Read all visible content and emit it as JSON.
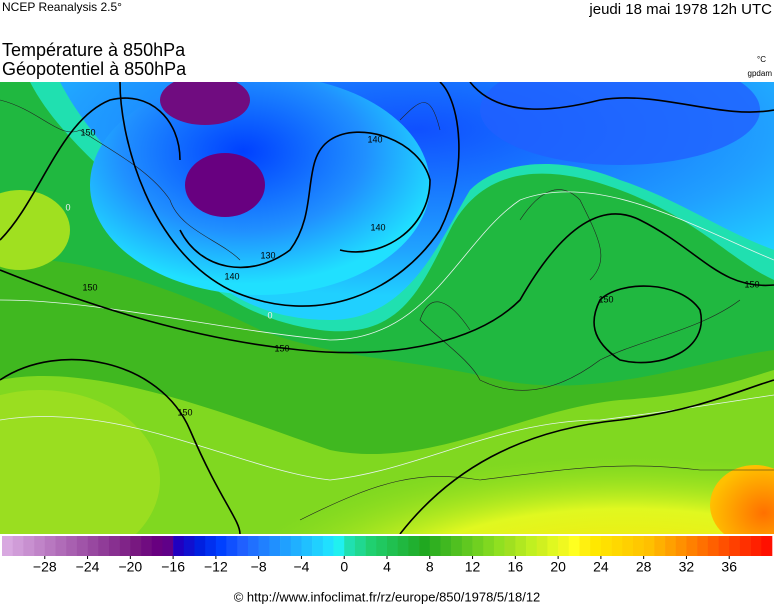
{
  "header": {
    "source": "NCEP Reanalysis 2.5°",
    "date": "jeudi 18 mai 1978 12h UTC",
    "title_lines": [
      "Température à 850hPa",
      "Géopotentiel à 850hPa"
    ],
    "units": [
      "°C",
      "gpdam"
    ]
  },
  "map": {
    "contour_labels": [
      150,
      140,
      130,
      140,
      140,
      150,
      150,
      150,
      150,
      150,
      0,
      0
    ]
  },
  "colorbar": {
    "range": [
      -32,
      40
    ],
    "ticks": [
      {
        "value": -28,
        "label": "−28"
      },
      {
        "value": -24,
        "label": "−24"
      },
      {
        "value": -20,
        "label": "−20"
      },
      {
        "value": -16,
        "label": "−16"
      },
      {
        "value": -12,
        "label": "−12"
      },
      {
        "value": -8,
        "label": "−8"
      },
      {
        "value": -4,
        "label": "−4"
      },
      0,
      4,
      8,
      12,
      16,
      20,
      24,
      28,
      32,
      36
    ],
    "colors": [
      "#d8a8e0",
      "#d09cd8",
      "#c890d0",
      "#c084c8",
      "#b878c0",
      "#b06cb8",
      "#a860b0",
      "#a054a8",
      "#9848a0",
      "#903c98",
      "#883090",
      "#802488",
      "#781880",
      "#700c80",
      "#680080",
      "#600088",
      "#2000c0",
      "#1010d0",
      "#0020e0",
      "#0030f0",
      "#0040ff",
      "#1050ff",
      "#2060ff",
      "#2070ff",
      "#2080ff",
      "#2090ff",
      "#20a0ff",
      "#20b0ff",
      "#20c0ff",
      "#20d0ff",
      "#20e0ff",
      "#20f0f0",
      "#20e0b0",
      "#20d890",
      "#20d070",
      "#20c860",
      "#20c050",
      "#20b840",
      "#20b030",
      "#20a820",
      "#30b020",
      "#40b820",
      "#50c020",
      "#60c820",
      "#70d020",
      "#80d820",
      "#90e020",
      "#a0e020",
      "#b0e820",
      "#c0f020",
      "#d0f020",
      "#e0f820",
      "#f0f820",
      "#ffff20",
      "#fff010",
      "#ffe800",
      "#ffe000",
      "#ffd800",
      "#ffd000",
      "#ffc800",
      "#ffc000",
      "#ffb000",
      "#ffa000",
      "#ff9000",
      "#ff8000",
      "#ff7000",
      "#ff6000",
      "#ff5000",
      "#ff4000",
      "#ff3000",
      "#ff2000",
      "#ff1000"
    ]
  },
  "footer": "© http://www.infoclimat.fr/rz/europe/850/1978/5/18/12"
}
